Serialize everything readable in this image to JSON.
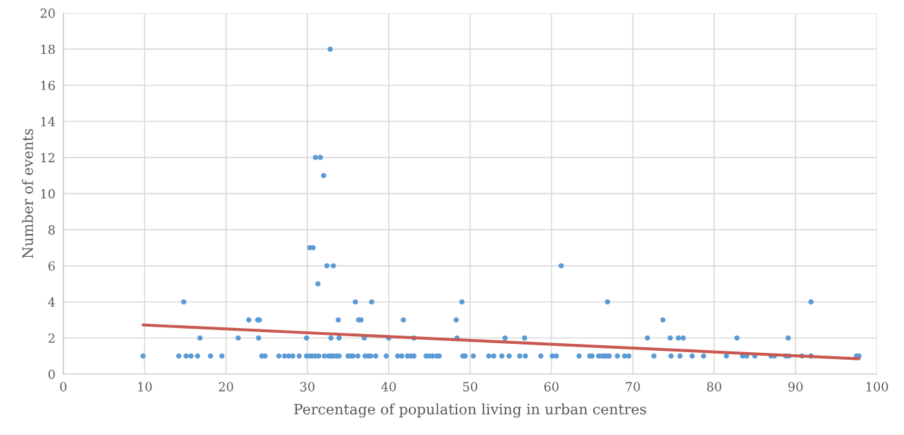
{
  "chart_data": {
    "type": "scatter",
    "xlabel": "Percentage of population living in urban centres",
    "ylabel": "Number of events",
    "xlim": [
      0,
      100
    ],
    "xticks": [
      0,
      10,
      20,
      30,
      40,
      50,
      60,
      70,
      80,
      90,
      100
    ],
    "ylim": [
      0,
      20
    ],
    "yticks": [
      0,
      2,
      4,
      6,
      8,
      10,
      12,
      14,
      16,
      18,
      20
    ],
    "grid": true,
    "legend": false,
    "series": [
      {
        "marker": "circle",
        "color": "#5b9bd5",
        "x": [
          9.8,
          14.2,
          15.1,
          15.7,
          16.5,
          18.1,
          19.5,
          24.4,
          24.8,
          26.5,
          27.2,
          27.7,
          28.2,
          29.0,
          29.9,
          30.3,
          30.6,
          31.0,
          31.4,
          32.1,
          32.6,
          32.9,
          33.2,
          33.6,
          33.9,
          35.0,
          35.3,
          35.6,
          36.2,
          37.1,
          37.5,
          37.8,
          38.4,
          39.7,
          41.1,
          41.6,
          42.3,
          42.7,
          43.1,
          44.6,
          45.0,
          45.4,
          45.9,
          46.2,
          49.1,
          49.4,
          50.4,
          52.3,
          52.9,
          53.9,
          54.8,
          56.1,
          56.8,
          58.7,
          60.1,
          60.6,
          63.4,
          64.7,
          65.0,
          65.8,
          66.2,
          66.5,
          66.8,
          67.1,
          68.1,
          69.0,
          69.5,
          72.6,
          74.7,
          75.8,
          77.3,
          78.7,
          81.5,
          83.5,
          84.0,
          85.0,
          87.0,
          87.4,
          88.8,
          89.2,
          90.8,
          91.9,
          97.5,
          97.8,
          16.8,
          21.5,
          24.0,
          29.9,
          32.9,
          33.9,
          37.0,
          40.0,
          43.1,
          48.4,
          54.3,
          56.7,
          71.8,
          74.6,
          75.6,
          76.2,
          82.8,
          89.1,
          22.8,
          23.9,
          24.1,
          33.8,
          36.3,
          36.6,
          41.8,
          48.3,
          73.7,
          14.8,
          35.9,
          37.9,
          49.0,
          66.9,
          91.9,
          31.3,
          32.4,
          33.2,
          61.2,
          30.3,
          30.7,
          32.0,
          31.0,
          31.6,
          32.8
        ],
        "values": [
          1,
          1,
          1,
          1,
          1,
          1,
          1,
          1,
          1,
          1,
          1,
          1,
          1,
          1,
          1,
          1,
          1,
          1,
          1,
          1,
          1,
          1,
          1,
          1,
          1,
          1,
          1,
          1,
          1,
          1,
          1,
          1,
          1,
          1,
          1,
          1,
          1,
          1,
          1,
          1,
          1,
          1,
          1,
          1,
          1,
          1,
          1,
          1,
          1,
          1,
          1,
          1,
          1,
          1,
          1,
          1,
          1,
          1,
          1,
          1,
          1,
          1,
          1,
          1,
          1,
          1,
          1,
          1,
          1,
          1,
          1,
          1,
          1,
          1,
          1,
          1,
          1,
          1,
          1,
          1,
          1,
          1,
          1,
          1,
          2,
          2,
          2,
          2,
          2,
          2,
          2,
          2,
          2,
          2,
          2,
          2,
          2,
          2,
          2,
          2,
          2,
          2,
          3,
          3,
          3,
          3,
          3,
          3,
          3,
          3,
          3,
          4,
          4,
          4,
          4,
          4,
          4,
          5,
          6,
          6,
          6,
          7,
          7,
          11,
          12,
          12,
          18
        ]
      },
      {
        "type": "line",
        "color": "#c9584f",
        "x": [
          9.8,
          97.8
        ],
        "values": [
          2.72,
          0.85
        ]
      }
    ]
  }
}
